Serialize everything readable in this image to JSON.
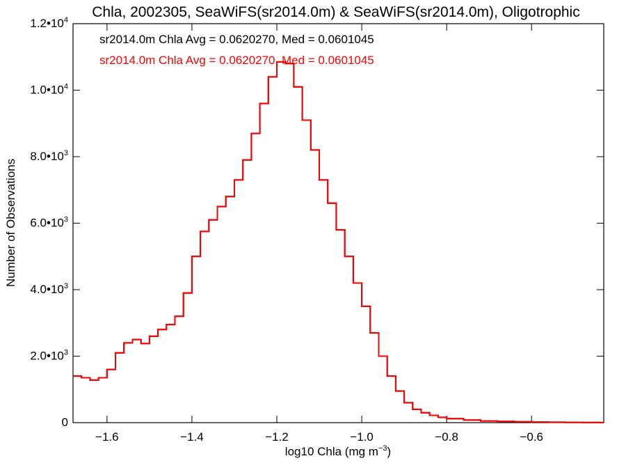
{
  "chart_data": {
    "type": "line",
    "style": "step-histogram",
    "title": "Chla, 2002305, SeaWiFS(sr2014.0m) & SeaWiFS(sr2014.0m), Oligotrophic",
    "xlabel": "log10 Chla (mg m",
    "xlabel_sup": "−3",
    "xlabel_close": ")",
    "ylabel": "Number of Observations",
    "xlim": [
      -1.68,
      -0.43
    ],
    "ylim": [
      0,
      12000
    ],
    "x_ticks": [
      {
        "value": -1.6,
        "label": "−1.6"
      },
      {
        "value": -1.4,
        "label": "−1.4"
      },
      {
        "value": -1.2,
        "label": "−1.2"
      },
      {
        "value": -1.0,
        "label": "−1.0"
      },
      {
        "value": -0.8,
        "label": "−0.8"
      },
      {
        "value": -0.6,
        "label": "−0.6"
      }
    ],
    "y_ticks": [
      {
        "value": 0,
        "mantissa": "0",
        "exp": ""
      },
      {
        "value": 2000,
        "mantissa": "2.0•10",
        "exp": "3"
      },
      {
        "value": 4000,
        "mantissa": "4.0•10",
        "exp": "3"
      },
      {
        "value": 6000,
        "mantissa": "6.0•10",
        "exp": "3"
      },
      {
        "value": 8000,
        "mantissa": "8.0•10",
        "exp": "3"
      },
      {
        "value": 10000,
        "mantissa": "1.0•10",
        "exp": "4"
      },
      {
        "value": 12000,
        "mantissa": "1.2•10",
        "exp": "4"
      }
    ],
    "annotations": [
      {
        "text": "sr2014.0m Chla Avg = 0.0620270, Med = 0.0601045",
        "color": "#000000"
      },
      {
        "text": "sr2014.0m Chla Avg = 0.0620270, Med = 0.0601045",
        "color": "#ff0000"
      }
    ],
    "series": [
      {
        "color": "#000000",
        "values": [
          [
            -1.68,
            1400
          ],
          [
            -1.66,
            1350
          ],
          [
            -1.64,
            1280
          ],
          [
            -1.62,
            1350
          ],
          [
            -1.6,
            1600
          ],
          [
            -1.58,
            2100
          ],
          [
            -1.56,
            2400
          ],
          [
            -1.54,
            2500
          ],
          [
            -1.52,
            2380
          ],
          [
            -1.5,
            2600
          ],
          [
            -1.48,
            2800
          ],
          [
            -1.46,
            2950
          ],
          [
            -1.44,
            3200
          ],
          [
            -1.42,
            3900
          ],
          [
            -1.4,
            5000
          ],
          [
            -1.38,
            5750
          ],
          [
            -1.36,
            6100
          ],
          [
            -1.34,
            6500
          ],
          [
            -1.32,
            6800
          ],
          [
            -1.3,
            7300
          ],
          [
            -1.28,
            7900
          ],
          [
            -1.26,
            8700
          ],
          [
            -1.24,
            9600
          ],
          [
            -1.22,
            10400
          ],
          [
            -1.2,
            10850
          ],
          [
            -1.18,
            10800
          ],
          [
            -1.16,
            10100
          ],
          [
            -1.14,
            9100
          ],
          [
            -1.12,
            8200
          ],
          [
            -1.1,
            7300
          ],
          [
            -1.08,
            6600
          ],
          [
            -1.06,
            5800
          ],
          [
            -1.04,
            5000
          ],
          [
            -1.02,
            4200
          ],
          [
            -1.0,
            3500
          ],
          [
            -0.98,
            2700
          ],
          [
            -0.96,
            2000
          ],
          [
            -0.94,
            1400
          ],
          [
            -0.92,
            950
          ],
          [
            -0.9,
            600
          ],
          [
            -0.88,
            400
          ],
          [
            -0.86,
            300
          ],
          [
            -0.84,
            220
          ],
          [
            -0.82,
            160
          ],
          [
            -0.8,
            120
          ],
          [
            -0.76,
            80
          ],
          [
            -0.72,
            50
          ],
          [
            -0.68,
            35
          ],
          [
            -0.64,
            25
          ],
          [
            -0.6,
            18
          ],
          [
            -0.56,
            12
          ],
          [
            -0.52,
            8
          ],
          [
            -0.48,
            5
          ],
          [
            -0.44,
            3
          ]
        ]
      },
      {
        "color": "#ff0000",
        "values": [
          [
            -1.68,
            1400
          ],
          [
            -1.66,
            1350
          ],
          [
            -1.64,
            1280
          ],
          [
            -1.62,
            1350
          ],
          [
            -1.6,
            1600
          ],
          [
            -1.58,
            2100
          ],
          [
            -1.56,
            2400
          ],
          [
            -1.54,
            2500
          ],
          [
            -1.52,
            2380
          ],
          [
            -1.5,
            2600
          ],
          [
            -1.48,
            2800
          ],
          [
            -1.46,
            2950
          ],
          [
            -1.44,
            3200
          ],
          [
            -1.42,
            3900
          ],
          [
            -1.4,
            5000
          ],
          [
            -1.38,
            5750
          ],
          [
            -1.36,
            6100
          ],
          [
            -1.34,
            6500
          ],
          [
            -1.32,
            6800
          ],
          [
            -1.3,
            7300
          ],
          [
            -1.28,
            7900
          ],
          [
            -1.26,
            8700
          ],
          [
            -1.24,
            9600
          ],
          [
            -1.22,
            10400
          ],
          [
            -1.2,
            10850
          ],
          [
            -1.18,
            10800
          ],
          [
            -1.16,
            10100
          ],
          [
            -1.14,
            9100
          ],
          [
            -1.12,
            8200
          ],
          [
            -1.1,
            7300
          ],
          [
            -1.08,
            6600
          ],
          [
            -1.06,
            5800
          ],
          [
            -1.04,
            5000
          ],
          [
            -1.02,
            4200
          ],
          [
            -1.0,
            3500
          ],
          [
            -0.98,
            2700
          ],
          [
            -0.96,
            2000
          ],
          [
            -0.94,
            1400
          ],
          [
            -0.92,
            950
          ],
          [
            -0.9,
            600
          ],
          [
            -0.88,
            400
          ],
          [
            -0.86,
            300
          ],
          [
            -0.84,
            220
          ],
          [
            -0.82,
            160
          ],
          [
            -0.8,
            120
          ],
          [
            -0.76,
            80
          ],
          [
            -0.72,
            50
          ],
          [
            -0.68,
            35
          ],
          [
            -0.64,
            25
          ],
          [
            -0.6,
            18
          ],
          [
            -0.56,
            12
          ],
          [
            -0.52,
            8
          ],
          [
            -0.48,
            5
          ],
          [
            -0.44,
            3
          ]
        ]
      }
    ]
  }
}
